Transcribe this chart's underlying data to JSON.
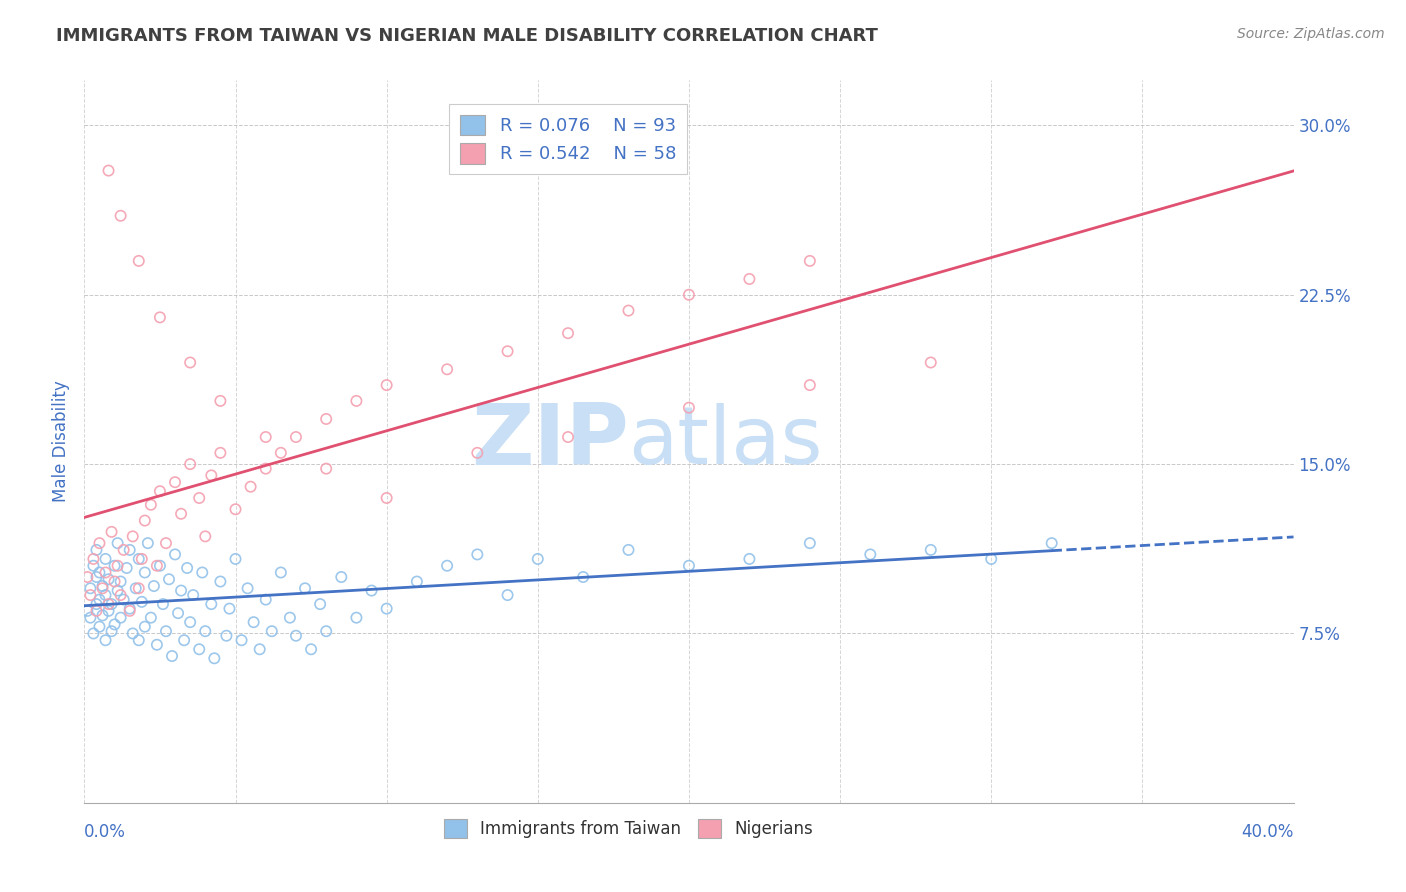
{
  "title": "IMMIGRANTS FROM TAIWAN VS NIGERIAN MALE DISABILITY CORRELATION CHART",
  "source": "Source: ZipAtlas.com",
  "ylabel": "Male Disability",
  "xlim": [
    0.0,
    0.4
  ],
  "ylim": [
    0.0,
    0.32
  ],
  "yticks": [
    0.075,
    0.15,
    0.225,
    0.3
  ],
  "ytick_labels": [
    "7.5%",
    "15.0%",
    "22.5%",
    "30.0%"
  ],
  "xtick_left_label": "0.0%",
  "xtick_right_label": "40.0%",
  "taiwan_R": 0.076,
  "taiwan_N": 93,
  "nigerian_R": 0.542,
  "nigerian_N": 58,
  "taiwan_color": "#92C1E9",
  "nigerian_color": "#F4A0B0",
  "taiwan_line_color": "#4472C4",
  "nigerian_line_color": "#E05070",
  "background_color": "#FFFFFF",
  "grid_color": "#BBBBBB",
  "title_color": "#404040",
  "axis_label_color": "#4472C4",
  "tick_color": "#4472C4",
  "watermark_zip": "ZIP",
  "watermark_atlas": "atlas",
  "watermark_color": "#C8DFF5",
  "legend_label_taiwan": "Immigrants from Taiwan",
  "legend_label_nigerian": "Nigerians",
  "tw_x": [
    0.001,
    0.002,
    0.002,
    0.003,
    0.003,
    0.004,
    0.004,
    0.004,
    0.005,
    0.005,
    0.005,
    0.006,
    0.006,
    0.007,
    0.007,
    0.007,
    0.008,
    0.008,
    0.009,
    0.009,
    0.01,
    0.01,
    0.011,
    0.011,
    0.012,
    0.012,
    0.013,
    0.014,
    0.015,
    0.015,
    0.016,
    0.017,
    0.018,
    0.018,
    0.019,
    0.02,
    0.02,
    0.021,
    0.022,
    0.023,
    0.024,
    0.025,
    0.026,
    0.027,
    0.028,
    0.029,
    0.03,
    0.031,
    0.032,
    0.033,
    0.034,
    0.035,
    0.036,
    0.038,
    0.039,
    0.04,
    0.042,
    0.043,
    0.045,
    0.047,
    0.048,
    0.05,
    0.052,
    0.054,
    0.056,
    0.058,
    0.06,
    0.062,
    0.065,
    0.068,
    0.07,
    0.073,
    0.075,
    0.078,
    0.08,
    0.085,
    0.09,
    0.095,
    0.1,
    0.11,
    0.12,
    0.13,
    0.14,
    0.15,
    0.165,
    0.18,
    0.2,
    0.22,
    0.24,
    0.26,
    0.28,
    0.3,
    0.32
  ],
  "tw_y": [
    0.085,
    0.095,
    0.082,
    0.105,
    0.075,
    0.1,
    0.088,
    0.112,
    0.09,
    0.078,
    0.102,
    0.083,
    0.096,
    0.108,
    0.072,
    0.092,
    0.085,
    0.099,
    0.088,
    0.076,
    0.105,
    0.079,
    0.094,
    0.115,
    0.082,
    0.098,
    0.09,
    0.104,
    0.086,
    0.112,
    0.075,
    0.095,
    0.108,
    0.072,
    0.089,
    0.102,
    0.078,
    0.115,
    0.082,
    0.096,
    0.07,
    0.105,
    0.088,
    0.076,
    0.099,
    0.065,
    0.11,
    0.084,
    0.094,
    0.072,
    0.104,
    0.08,
    0.092,
    0.068,
    0.102,
    0.076,
    0.088,
    0.064,
    0.098,
    0.074,
    0.086,
    0.108,
    0.072,
    0.095,
    0.08,
    0.068,
    0.09,
    0.076,
    0.102,
    0.082,
    0.074,
    0.095,
    0.068,
    0.088,
    0.076,
    0.1,
    0.082,
    0.094,
    0.086,
    0.098,
    0.105,
    0.11,
    0.092,
    0.108,
    0.1,
    0.112,
    0.105,
    0.108,
    0.115,
    0.11,
    0.112,
    0.108,
    0.115
  ],
  "ng_x": [
    0.001,
    0.002,
    0.003,
    0.004,
    0.005,
    0.006,
    0.007,
    0.008,
    0.009,
    0.01,
    0.011,
    0.012,
    0.013,
    0.015,
    0.016,
    0.018,
    0.019,
    0.02,
    0.022,
    0.024,
    0.025,
    0.027,
    0.03,
    0.032,
    0.035,
    0.038,
    0.04,
    0.042,
    0.045,
    0.05,
    0.055,
    0.06,
    0.065,
    0.07,
    0.08,
    0.09,
    0.1,
    0.12,
    0.14,
    0.16,
    0.18,
    0.2,
    0.22,
    0.24,
    0.008,
    0.012,
    0.018,
    0.025,
    0.035,
    0.045,
    0.06,
    0.08,
    0.1,
    0.13,
    0.16,
    0.2,
    0.24,
    0.28
  ],
  "ng_y": [
    0.1,
    0.092,
    0.108,
    0.085,
    0.115,
    0.095,
    0.102,
    0.088,
    0.12,
    0.098,
    0.105,
    0.092,
    0.112,
    0.085,
    0.118,
    0.095,
    0.108,
    0.125,
    0.132,
    0.105,
    0.138,
    0.115,
    0.142,
    0.128,
    0.15,
    0.135,
    0.118,
    0.145,
    0.155,
    0.13,
    0.14,
    0.148,
    0.155,
    0.162,
    0.17,
    0.178,
    0.185,
    0.192,
    0.2,
    0.208,
    0.218,
    0.225,
    0.232,
    0.24,
    0.28,
    0.26,
    0.24,
    0.215,
    0.195,
    0.178,
    0.162,
    0.148,
    0.135,
    0.155,
    0.162,
    0.175,
    0.185,
    0.195
  ]
}
